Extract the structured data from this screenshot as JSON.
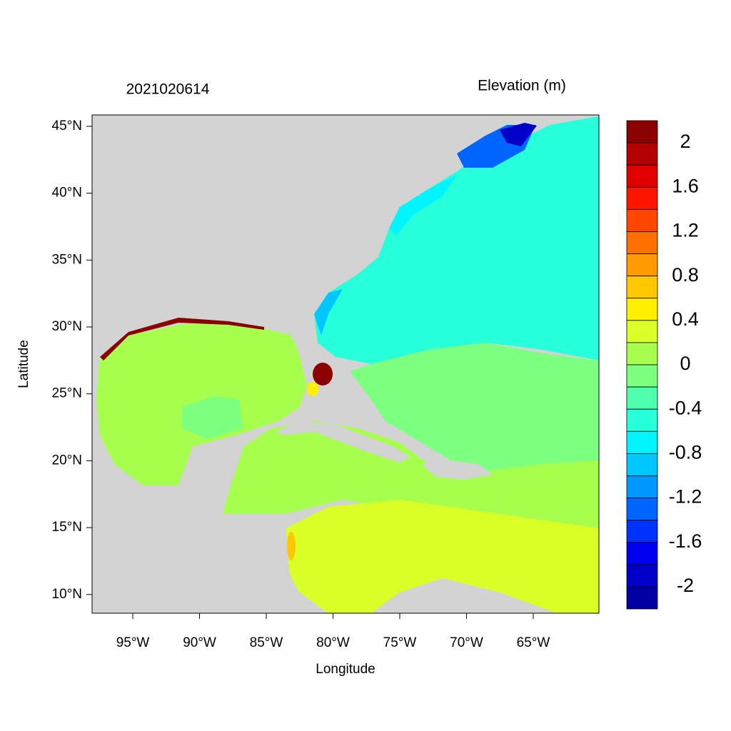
{
  "chart_data": {
    "type": "filled-contour-map",
    "title": "2021020614",
    "subtitle": "Elevation (m)",
    "xlabel": "Longitude",
    "ylabel": "Latitude",
    "xlim": [
      -98.05,
      -60.08
    ],
    "ylim": [
      8.6,
      45.85
    ],
    "xticks": [
      {
        "value": -95,
        "label": "95°W"
      },
      {
        "value": -90,
        "label": "90°W"
      },
      {
        "value": -85,
        "label": "85°W"
      },
      {
        "value": -80,
        "label": "80°W"
      },
      {
        "value": -75,
        "label": "75°W"
      },
      {
        "value": -70,
        "label": "70°W"
      },
      {
        "value": -65,
        "label": "65°W"
      }
    ],
    "yticks": [
      {
        "value": 10,
        "label": "10°N"
      },
      {
        "value": 15,
        "label": "15°N"
      },
      {
        "value": 20,
        "label": "20°N"
      },
      {
        "value": 25,
        "label": "25°N"
      },
      {
        "value": 30,
        "label": "30°N"
      },
      {
        "value": 35,
        "label": "35°N"
      },
      {
        "value": 40,
        "label": "40°N"
      },
      {
        "value": 45,
        "label": "45°N"
      }
    ],
    "colorbar": {
      "levels": [
        2.2,
        2,
        1.8,
        1.6,
        1.4,
        1.2,
        1,
        0.8,
        0.6,
        0.4,
        0.2,
        0,
        -0.2,
        -0.4,
        -0.6,
        -0.8,
        -1,
        -1.2,
        -1.4,
        -1.6,
        -1.8,
        -2,
        -2.2
      ],
      "colors": [
        "#8b0000",
        "#b30000",
        "#e00000",
        "#ff1400",
        "#ff4500",
        "#ff6e00",
        "#ff9a00",
        "#ffc800",
        "#fff000",
        "#d9ff26",
        "#a6ff4d",
        "#7dff80",
        "#4dffaa",
        "#26ffd9",
        "#00f5ff",
        "#00c8ff",
        "#0096ff",
        "#0064ff",
        "#0032ff",
        "#0000f0",
        "#0000c8",
        "#0000a0"
      ],
      "ticks": [
        2,
        1.6,
        1.2,
        0.8,
        0.4,
        0,
        -0.4,
        -0.8,
        -1.2,
        -1.6,
        -2
      ]
    }
  }
}
